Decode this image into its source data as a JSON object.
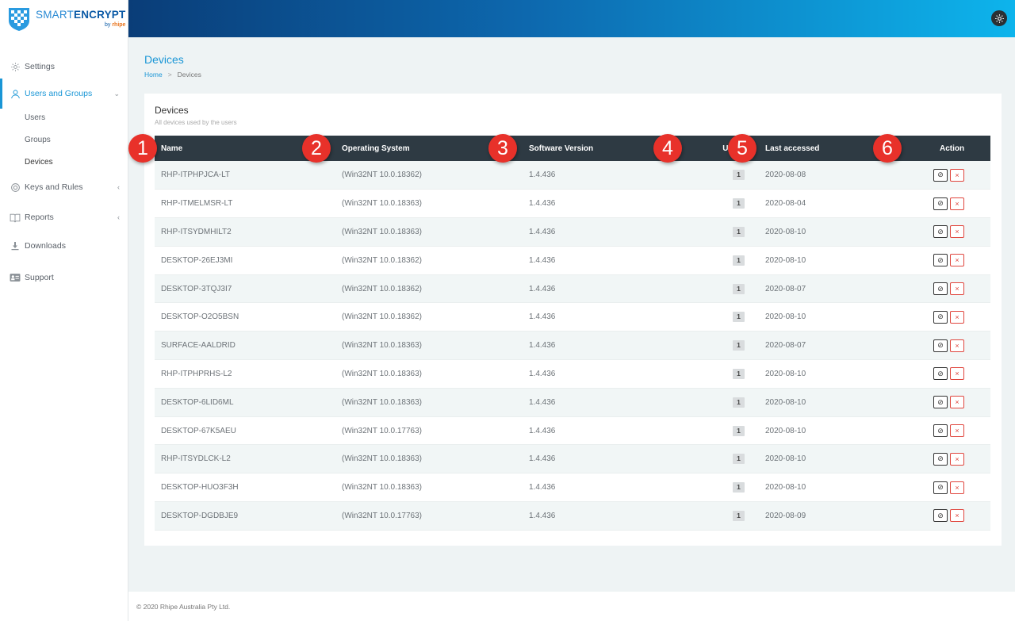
{
  "brand": {
    "name_bold": "SMART",
    "name_light": "ENCRYPT",
    "by": "by",
    "by_brand": "rhipe"
  },
  "sidebar": {
    "items": [
      {
        "label": "Settings",
        "icon": "gear-icon"
      },
      {
        "label": "Users and Groups",
        "icon": "user-icon",
        "chevron": "⌄"
      },
      {
        "label": "Keys and Rules",
        "icon": "target-icon",
        "chevron": "‹"
      },
      {
        "label": "Reports",
        "icon": "book-icon",
        "chevron": "‹"
      },
      {
        "label": "Downloads",
        "icon": "download-icon"
      },
      {
        "label": "Support",
        "icon": "id-card-icon"
      }
    ],
    "subitems": [
      {
        "label": "Users"
      },
      {
        "label": "Groups"
      },
      {
        "label": "Devices"
      }
    ]
  },
  "header": {
    "title": "Devices",
    "breadcrumb_home": "Home",
    "breadcrumb_sep": ">",
    "breadcrumb_current": "Devices"
  },
  "card": {
    "title": "Devices",
    "subtitle": "All devices used by the users"
  },
  "table": {
    "columns": [
      "Name",
      "Operating System",
      "Software Version",
      "Users",
      "Last accessed",
      "Action"
    ],
    "rows": [
      {
        "name": "RHP-ITPHPJCA-LT",
        "os": "(Win32NT 10.0.18362)",
        "sw": "1.4.436",
        "users": "1",
        "last": "2020-08-08"
      },
      {
        "name": "RHP-ITMELMSR-LT",
        "os": "(Win32NT 10.0.18363)",
        "sw": "1.4.436",
        "users": "1",
        "last": "2020-08-04"
      },
      {
        "name": "RHP-ITSYDMHILT2",
        "os": "(Win32NT 10.0.18363)",
        "sw": "1.4.436",
        "users": "1",
        "last": "2020-08-10"
      },
      {
        "name": "DESKTOP-26EJ3MI",
        "os": "(Win32NT 10.0.18362)",
        "sw": "1.4.436",
        "users": "1",
        "last": "2020-08-10"
      },
      {
        "name": "DESKTOP-3TQJ3I7",
        "os": "(Win32NT 10.0.18362)",
        "sw": "1.4.436",
        "users": "1",
        "last": "2020-08-07"
      },
      {
        "name": "DESKTOP-O2O5BSN",
        "os": "(Win32NT 10.0.18362)",
        "sw": "1.4.436",
        "users": "1",
        "last": "2020-08-10"
      },
      {
        "name": "SURFACE-AALDRID",
        "os": "(Win32NT 10.0.18363)",
        "sw": "1.4.436",
        "users": "1",
        "last": "2020-08-07"
      },
      {
        "name": "RHP-ITPHPRHS-L2",
        "os": "(Win32NT 10.0.18363)",
        "sw": "1.4.436",
        "users": "1",
        "last": "2020-08-10"
      },
      {
        "name": "DESKTOP-6LID6ML",
        "os": "(Win32NT 10.0.18363)",
        "sw": "1.4.436",
        "users": "1",
        "last": "2020-08-10"
      },
      {
        "name": "DESKTOP-67K5AEU",
        "os": "(Win32NT 10.0.17763)",
        "sw": "1.4.436",
        "users": "1",
        "last": "2020-08-10"
      },
      {
        "name": "RHP-ITSYDLCK-L2",
        "os": "(Win32NT 10.0.18363)",
        "sw": "1.4.436",
        "users": "1",
        "last": "2020-08-10"
      },
      {
        "name": "DESKTOP-HUO3F3H",
        "os": "(Win32NT 10.0.18363)",
        "sw": "1.4.436",
        "users": "1",
        "last": "2020-08-10"
      },
      {
        "name": "DESKTOP-DGDBJE9",
        "os": "(Win32NT 10.0.17763)",
        "sw": "1.4.436",
        "users": "1",
        "last": "2020-08-09"
      }
    ],
    "action_disable_icon": "⊘",
    "action_remove_icon": "×"
  },
  "markers": [
    "1",
    "2",
    "3",
    "4",
    "5",
    "6"
  ],
  "footer": {
    "text": "© 2020 Rhipe Australia Pty Ltd."
  },
  "colors": {
    "accent": "#1a96d6",
    "header_dark": "#2e3a43",
    "marker": "#e8312a",
    "danger": "#e0463e"
  }
}
